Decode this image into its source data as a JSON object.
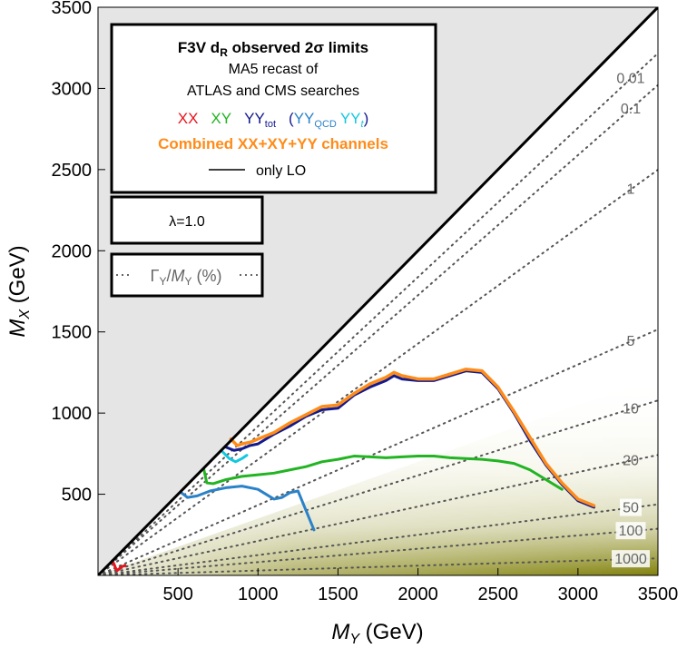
{
  "chart_data": {
    "type": "line",
    "xlabel_var": "M",
    "xlabel_sub": "Y",
    "xlabel_unit": " (GeV)",
    "ylabel_var": "M",
    "ylabel_sub": "X",
    "ylabel_unit": " (GeV)",
    "xlim": [
      0,
      3500
    ],
    "ylim": [
      0,
      3500
    ],
    "x_ticks": [
      500,
      1000,
      1500,
      2000,
      2500,
      3000,
      3500
    ],
    "y_ticks": [
      500,
      1000,
      1500,
      2000,
      2500,
      3000,
      3500
    ],
    "legend": {
      "title_main": "F3V d",
      "title_sub": "R",
      "title_rest": " observed 2σ limits",
      "line1": "MA5 recast of",
      "line2": "ATLAS and CMS searches",
      "xx": "XX",
      "xy": "XY",
      "yy_tot": "YY",
      "yy_tot_sub": "tot",
      "paren_open": "(",
      "yy_qcd": "YY",
      "yy_qcd_sub": "QCD",
      "yy_t": "YY",
      "yy_t_sub": "t",
      "paren_close": ")",
      "combined": "Combined XX+XY+YY channels",
      "only_lo": "only LO"
    },
    "lambda_label": "λ=1.0",
    "width_label": {
      "gamma": "Γ",
      "gamma_sub": "Y",
      "slash": "/",
      "m": "M",
      "m_sub": "Y",
      "rest": " (%)"
    },
    "colors": {
      "xx": "#e8141c",
      "xy": "#22b422",
      "yy_tot": "#131a8c",
      "yy_qcd": "#2a82c8",
      "yy_t": "#12c8e0",
      "combined": "#ff8c1a",
      "excluded_region": "#e5e5e5",
      "shading": "#7a7a00"
    },
    "width_contours": [
      {
        "label": "0.01",
        "slope": 0.919
      },
      {
        "label": "0.1",
        "slope": 0.863
      },
      {
        "label": "1",
        "slope": 0.714
      },
      {
        "label": "5",
        "slope": 0.433
      },
      {
        "label": "10",
        "slope": 0.308
      },
      {
        "label": "20",
        "slope": 0.212
      },
      {
        "label": "50",
        "slope": 0.125
      },
      {
        "label": "100",
        "slope": 0.082
      },
      {
        "label": "1000",
        "slope": 0.03
      }
    ],
    "series": [
      {
        "name": "XX",
        "color_key": "xx",
        "x": [
          90,
          100,
          110,
          120,
          130,
          140,
          150,
          160,
          170
        ],
        "y": [
          90,
          70,
          45,
          30,
          38,
          48,
          55,
          58,
          60
        ]
      },
      {
        "name": "XY",
        "color_key": "xy",
        "x": [
          660,
          680,
          720,
          800,
          900,
          1000,
          1100,
          1200,
          1300,
          1400,
          1500,
          1600,
          1700,
          1800,
          1900,
          2000,
          2100,
          2200,
          2300,
          2400,
          2500,
          2600,
          2700,
          2800,
          2900
        ],
        "y": [
          660,
          570,
          565,
          590,
          610,
          620,
          630,
          650,
          670,
          700,
          715,
          735,
          730,
          725,
          730,
          735,
          735,
          725,
          720,
          715,
          705,
          690,
          650,
          590,
          530
        ]
      },
      {
        "name": "YY_QCD",
        "color_key": "yy_qcd",
        "x": [
          520,
          560,
          620,
          700,
          800,
          900,
          1000,
          1050,
          1100,
          1150,
          1200,
          1250,
          1300,
          1350
        ],
        "y": [
          510,
          480,
          490,
          520,
          540,
          550,
          530,
          500,
          470,
          480,
          510,
          520,
          400,
          280
        ]
      },
      {
        "name": "YY_t",
        "color_key": "yy_t",
        "x": [
          780,
          820,
          860,
          900,
          930
        ],
        "y": [
          760,
          720,
          700,
          720,
          740
        ]
      },
      {
        "name": "YY_tot",
        "color_key": "yy_tot",
        "x": [
          800,
          850,
          900,
          950,
          1000,
          1100,
          1200,
          1300,
          1400,
          1500,
          1600,
          1700,
          1800,
          1850,
          1900,
          2000,
          2100,
          2200,
          2300,
          2400,
          2500,
          2600,
          2700,
          2800,
          2900,
          3000,
          3100
        ],
        "y": [
          790,
          770,
          780,
          800,
          810,
          870,
          920,
          980,
          1020,
          1030,
          1110,
          1160,
          1200,
          1230,
          1210,
          1200,
          1200,
          1230,
          1260,
          1250,
          1150,
          1000,
          830,
          680,
          560,
          460,
          420
        ]
      },
      {
        "name": "Combined",
        "color_key": "combined",
        "x": [
          830,
          870,
          900,
          950,
          1000,
          1100,
          1200,
          1300,
          1400,
          1500,
          1600,
          1700,
          1800,
          1850,
          1900,
          2000,
          2100,
          2200,
          2300,
          2400,
          2500,
          2600,
          2700,
          2800,
          2900,
          3000,
          3100
        ],
        "y": [
          840,
          800,
          810,
          820,
          840,
          880,
          940,
          990,
          1040,
          1050,
          1120,
          1180,
          1220,
          1250,
          1230,
          1210,
          1210,
          1240,
          1270,
          1260,
          1160,
          1010,
          850,
          690,
          570,
          470,
          430
        ]
      }
    ]
  }
}
